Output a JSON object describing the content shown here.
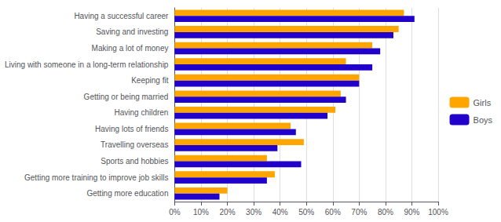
{
  "chart_data": {
    "type": "bar",
    "orientation": "horizontal",
    "categories": [
      "Getting more education",
      "Getting more training to improve job skills",
      "Sports and hobbies",
      "Travelling overseas",
      "Having lots of friends",
      "Having children",
      "Getting or being married",
      "Keeping fit",
      "Living with someone in a long-term relationship",
      "Making a lot of money",
      "Saving and investing",
      "Having a successful career"
    ],
    "series": [
      {
        "name": "Girls",
        "color": "#FFA500",
        "values": [
          20,
          38,
          35,
          49,
          44,
          61,
          63,
          70,
          65,
          75,
          85,
          87
        ]
      },
      {
        "name": "Boys",
        "color": "#2200CC",
        "values": [
          17,
          35,
          48,
          39,
          46,
          58,
          65,
          70,
          75,
          78,
          83,
          91
        ]
      }
    ],
    "xlim": [
      0,
      100
    ],
    "xticks": [
      {
        "value": 0,
        "label": "0%"
      },
      {
        "value": 10,
        "label": "10%"
      },
      {
        "value": 20,
        "label": "20%"
      },
      {
        "value": 30,
        "label": "30%"
      },
      {
        "value": 40,
        "label": "40%"
      },
      {
        "value": 50,
        "label": "50%"
      },
      {
        "value": 60,
        "label": "60%"
      },
      {
        "value": 70,
        "label": "70%"
      },
      {
        "value": 80,
        "label": "80%"
      },
      {
        "value": 90,
        "label": "90%"
      },
      {
        "value": 100,
        "label": "100%"
      }
    ],
    "grid": true,
    "legend": "right"
  }
}
